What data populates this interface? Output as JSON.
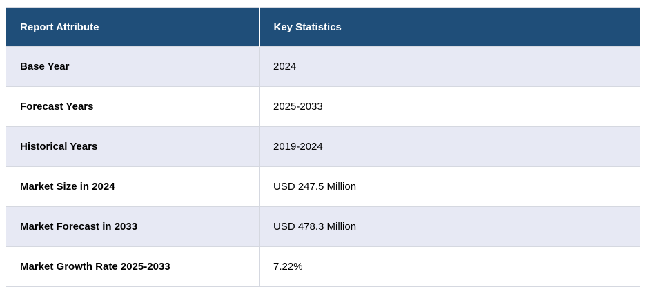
{
  "table": {
    "columns": [
      {
        "label": "Report Attribute"
      },
      {
        "label": "Key Statistics"
      }
    ],
    "rows": [
      {
        "attribute": "Base Year",
        "value": "2024"
      },
      {
        "attribute": "Forecast Years",
        "value": "2025-2033"
      },
      {
        "attribute": "Historical Years",
        "value": "2019-2024"
      },
      {
        "attribute": "Market Size in 2024",
        "value": "USD 247.5 Million"
      },
      {
        "attribute": "Market Forecast in 2033",
        "value": "USD 478.3 Million"
      },
      {
        "attribute": "Market Growth Rate 2025-2033",
        "value": "7.22%"
      }
    ],
    "colors": {
      "header_bg": "#1F4E79",
      "header_text": "#FFFFFF",
      "row_bg": "#FFFFFF",
      "row_alt_bg": "#E7E9F4",
      "border": "#D5D8E0",
      "text": "#000000",
      "page_bg": "#FFFFFF"
    }
  },
  "chart_data": {
    "type": "table",
    "title": "",
    "columns": [
      "Report Attribute",
      "Key Statistics"
    ],
    "rows": [
      [
        "Base Year",
        "2024"
      ],
      [
        "Forecast Years",
        "2025-2033"
      ],
      [
        "Historical Years",
        "2019-2024"
      ],
      [
        "Market Size in 2024",
        "USD 247.5 Million"
      ],
      [
        "Market Forecast in 2033",
        "USD 478.3 Million"
      ],
      [
        "Market Growth Rate 2025-2033",
        "7.22%"
      ]
    ]
  }
}
